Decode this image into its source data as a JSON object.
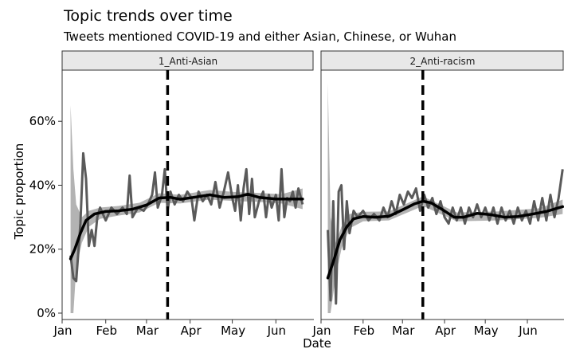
{
  "chart_data": {
    "type": "line",
    "title": "Topic trends over time",
    "subtitle": "Tweets mentioned COVID-19 and either Asian, Chinese, or Wuhan",
    "xlabel": "Date",
    "ylabel": "Topic proportion",
    "x_ticks": [
      "Jan",
      "Feb",
      "Mar",
      "Apr",
      "May",
      "Jun"
    ],
    "y_ticks": [
      "0%",
      "20%",
      "40%",
      "60%"
    ],
    "ylim": [
      -0.02,
      0.76
    ],
    "xlim": [
      "2020-01-01",
      "2020-06-28"
    ],
    "reference_line_date": "2020-03-16",
    "colors": {
      "raw_line": "#5a5a5a",
      "ribbon": "#b3b3b3",
      "smooth_line": "#000000",
      "strip_fill": "#e8e8e8",
      "strip_border": "#333333"
    },
    "panels": [
      {
        "strip": "1_Anti-Asian",
        "raw": [
          {
            "x": "2020-01-07",
            "y": 0.18
          },
          {
            "x": "2020-01-09",
            "y": 0.11
          },
          {
            "x": "2020-01-11",
            "y": 0.1
          },
          {
            "x": "2020-01-14",
            "y": 0.28
          },
          {
            "x": "2020-01-16",
            "y": 0.5
          },
          {
            "x": "2020-01-18",
            "y": 0.42
          },
          {
            "x": "2020-01-20",
            "y": 0.21
          },
          {
            "x": "2020-01-22",
            "y": 0.26
          },
          {
            "x": "2020-01-24",
            "y": 0.21
          },
          {
            "x": "2020-01-26",
            "y": 0.3
          },
          {
            "x": "2020-01-28",
            "y": 0.33
          },
          {
            "x": "2020-02-01",
            "y": 0.29
          },
          {
            "x": "2020-02-05",
            "y": 0.33
          },
          {
            "x": "2020-02-09",
            "y": 0.31
          },
          {
            "x": "2020-02-13",
            "y": 0.33
          },
          {
            "x": "2020-02-16",
            "y": 0.31
          },
          {
            "x": "2020-02-18",
            "y": 0.43
          },
          {
            "x": "2020-02-20",
            "y": 0.3
          },
          {
            "x": "2020-02-24",
            "y": 0.33
          },
          {
            "x": "2020-02-28",
            "y": 0.32
          },
          {
            "x": "2020-03-02",
            "y": 0.34
          },
          {
            "x": "2020-03-05",
            "y": 0.37
          },
          {
            "x": "2020-03-07",
            "y": 0.44
          },
          {
            "x": "2020-03-09",
            "y": 0.33
          },
          {
            "x": "2020-03-12",
            "y": 0.37
          },
          {
            "x": "2020-03-14",
            "y": 0.45
          },
          {
            "x": "2020-03-16",
            "y": 0.32
          },
          {
            "x": "2020-03-18",
            "y": 0.38
          },
          {
            "x": "2020-03-21",
            "y": 0.34
          },
          {
            "x": "2020-03-24",
            "y": 0.37
          },
          {
            "x": "2020-03-27",
            "y": 0.35
          },
          {
            "x": "2020-03-30",
            "y": 0.38
          },
          {
            "x": "2020-04-02",
            "y": 0.36
          },
          {
            "x": "2020-04-04",
            "y": 0.29
          },
          {
            "x": "2020-04-07",
            "y": 0.38
          },
          {
            "x": "2020-04-10",
            "y": 0.35
          },
          {
            "x": "2020-04-13",
            "y": 0.37
          },
          {
            "x": "2020-04-16",
            "y": 0.34
          },
          {
            "x": "2020-04-19",
            "y": 0.41
          },
          {
            "x": "2020-04-22",
            "y": 0.33
          },
          {
            "x": "2020-04-25",
            "y": 0.38
          },
          {
            "x": "2020-04-28",
            "y": 0.44
          },
          {
            "x": "2020-05-01",
            "y": 0.36
          },
          {
            "x": "2020-05-03",
            "y": 0.32
          },
          {
            "x": "2020-05-05",
            "y": 0.4
          },
          {
            "x": "2020-05-07",
            "y": 0.29
          },
          {
            "x": "2020-05-09",
            "y": 0.39
          },
          {
            "x": "2020-05-11",
            "y": 0.45
          },
          {
            "x": "2020-05-13",
            "y": 0.31
          },
          {
            "x": "2020-05-15",
            "y": 0.42
          },
          {
            "x": "2020-05-17",
            "y": 0.3
          },
          {
            "x": "2020-05-20",
            "y": 0.35
          },
          {
            "x": "2020-05-23",
            "y": 0.38
          },
          {
            "x": "2020-05-25",
            "y": 0.3
          },
          {
            "x": "2020-05-27",
            "y": 0.37
          },
          {
            "x": "2020-05-29",
            "y": 0.33
          },
          {
            "x": "2020-06-01",
            "y": 0.37
          },
          {
            "x": "2020-06-03",
            "y": 0.29
          },
          {
            "x": "2020-06-05",
            "y": 0.45
          },
          {
            "x": "2020-06-07",
            "y": 0.3
          },
          {
            "x": "2020-06-09",
            "y": 0.36
          },
          {
            "x": "2020-06-11",
            "y": 0.35
          },
          {
            "x": "2020-06-13",
            "y": 0.38
          },
          {
            "x": "2020-06-15",
            "y": 0.33
          },
          {
            "x": "2020-06-17",
            "y": 0.39
          },
          {
            "x": "2020-06-20",
            "y": 0.34
          }
        ],
        "smooth": [
          {
            "x": "2020-01-07",
            "y": 0.17
          },
          {
            "x": "2020-01-10",
            "y": 0.2
          },
          {
            "x": "2020-01-14",
            "y": 0.25
          },
          {
            "x": "2020-01-18",
            "y": 0.29
          },
          {
            "x": "2020-01-24",
            "y": 0.31
          },
          {
            "x": "2020-02-01",
            "y": 0.318
          },
          {
            "x": "2020-02-10",
            "y": 0.32
          },
          {
            "x": "2020-02-20",
            "y": 0.325
          },
          {
            "x": "2020-03-01",
            "y": 0.338
          },
          {
            "x": "2020-03-10",
            "y": 0.36
          },
          {
            "x": "2020-03-18",
            "y": 0.362
          },
          {
            "x": "2020-03-25",
            "y": 0.356
          },
          {
            "x": "2020-04-05",
            "y": 0.363
          },
          {
            "x": "2020-04-15",
            "y": 0.37
          },
          {
            "x": "2020-04-25",
            "y": 0.362
          },
          {
            "x": "2020-05-05",
            "y": 0.364
          },
          {
            "x": "2020-05-12",
            "y": 0.372
          },
          {
            "x": "2020-05-20",
            "y": 0.362
          },
          {
            "x": "2020-06-01",
            "y": 0.357
          },
          {
            "x": "2020-06-10",
            "y": 0.357
          },
          {
            "x": "2020-06-20",
            "y": 0.357
          }
        ],
        "ribbon": [
          {
            "x": "2020-01-07",
            "lo": 0.0,
            "hi": 0.65
          },
          {
            "x": "2020-01-09",
            "lo": 0.0,
            "hi": 0.45
          },
          {
            "x": "2020-01-11",
            "lo": 0.14,
            "hi": 0.34
          },
          {
            "x": "2020-01-15",
            "lo": 0.22,
            "hi": 0.3
          },
          {
            "x": "2020-01-20",
            "lo": 0.27,
            "hi": 0.32
          },
          {
            "x": "2020-01-28",
            "lo": 0.295,
            "hi": 0.33
          },
          {
            "x": "2020-02-10",
            "lo": 0.305,
            "hi": 0.335
          },
          {
            "x": "2020-02-25",
            "lo": 0.315,
            "hi": 0.345
          },
          {
            "x": "2020-03-10",
            "lo": 0.345,
            "hi": 0.375
          },
          {
            "x": "2020-03-25",
            "lo": 0.343,
            "hi": 0.37
          },
          {
            "x": "2020-04-15",
            "lo": 0.355,
            "hi": 0.385
          },
          {
            "x": "2020-05-05",
            "lo": 0.35,
            "hi": 0.378
          },
          {
            "x": "2020-05-20",
            "lo": 0.348,
            "hi": 0.376
          },
          {
            "x": "2020-06-05",
            "lo": 0.343,
            "hi": 0.372
          },
          {
            "x": "2020-06-20",
            "lo": 0.325,
            "hi": 0.39
          }
        ]
      },
      {
        "strip": "2_Anti-racism",
        "raw": [
          {
            "x": "2020-01-06",
            "y": 0.26
          },
          {
            "x": "2020-01-08",
            "y": 0.04
          },
          {
            "x": "2020-01-10",
            "y": 0.35
          },
          {
            "x": "2020-01-12",
            "y": 0.03
          },
          {
            "x": "2020-01-14",
            "y": 0.38
          },
          {
            "x": "2020-01-16",
            "y": 0.4
          },
          {
            "x": "2020-01-18",
            "y": 0.2
          },
          {
            "x": "2020-01-20",
            "y": 0.35
          },
          {
            "x": "2020-01-22",
            "y": 0.25
          },
          {
            "x": "2020-01-25",
            "y": 0.32
          },
          {
            "x": "2020-01-28",
            "y": 0.3
          },
          {
            "x": "2020-02-01",
            "y": 0.32
          },
          {
            "x": "2020-02-05",
            "y": 0.29
          },
          {
            "x": "2020-02-09",
            "y": 0.31
          },
          {
            "x": "2020-02-13",
            "y": 0.29
          },
          {
            "x": "2020-02-16",
            "y": 0.33
          },
          {
            "x": "2020-02-19",
            "y": 0.3
          },
          {
            "x": "2020-02-22",
            "y": 0.35
          },
          {
            "x": "2020-02-25",
            "y": 0.31
          },
          {
            "x": "2020-02-28",
            "y": 0.37
          },
          {
            "x": "2020-03-02",
            "y": 0.34
          },
          {
            "x": "2020-03-05",
            "y": 0.38
          },
          {
            "x": "2020-03-08",
            "y": 0.36
          },
          {
            "x": "2020-03-11",
            "y": 0.39
          },
          {
            "x": "2020-03-14",
            "y": 0.32
          },
          {
            "x": "2020-03-17",
            "y": 0.37
          },
          {
            "x": "2020-03-20",
            "y": 0.33
          },
          {
            "x": "2020-03-23",
            "y": 0.36
          },
          {
            "x": "2020-03-26",
            "y": 0.31
          },
          {
            "x": "2020-03-29",
            "y": 0.35
          },
          {
            "x": "2020-04-01",
            "y": 0.3
          },
          {
            "x": "2020-04-04",
            "y": 0.28
          },
          {
            "x": "2020-04-07",
            "y": 0.33
          },
          {
            "x": "2020-04-10",
            "y": 0.29
          },
          {
            "x": "2020-04-13",
            "y": 0.33
          },
          {
            "x": "2020-04-16",
            "y": 0.28
          },
          {
            "x": "2020-04-19",
            "y": 0.33
          },
          {
            "x": "2020-04-22",
            "y": 0.3
          },
          {
            "x": "2020-04-25",
            "y": 0.34
          },
          {
            "x": "2020-04-28",
            "y": 0.3
          },
          {
            "x": "2020-05-01",
            "y": 0.33
          },
          {
            "x": "2020-05-04",
            "y": 0.29
          },
          {
            "x": "2020-05-07",
            "y": 0.33
          },
          {
            "x": "2020-05-10",
            "y": 0.28
          },
          {
            "x": "2020-05-13",
            "y": 0.33
          },
          {
            "x": "2020-05-16",
            "y": 0.29
          },
          {
            "x": "2020-05-19",
            "y": 0.32
          },
          {
            "x": "2020-05-22",
            "y": 0.28
          },
          {
            "x": "2020-05-25",
            "y": 0.33
          },
          {
            "x": "2020-05-28",
            "y": 0.29
          },
          {
            "x": "2020-05-31",
            "y": 0.32
          },
          {
            "x": "2020-06-03",
            "y": 0.28
          },
          {
            "x": "2020-06-06",
            "y": 0.35
          },
          {
            "x": "2020-06-09",
            "y": 0.29
          },
          {
            "x": "2020-06-12",
            "y": 0.36
          },
          {
            "x": "2020-06-15",
            "y": 0.29
          },
          {
            "x": "2020-06-18",
            "y": 0.37
          },
          {
            "x": "2020-06-21",
            "y": 0.3
          },
          {
            "x": "2020-06-24",
            "y": 0.36
          },
          {
            "x": "2020-06-27",
            "y": 0.45
          }
        ],
        "smooth": [
          {
            "x": "2020-01-06",
            "y": 0.11
          },
          {
            "x": "2020-01-10",
            "y": 0.16
          },
          {
            "x": "2020-01-15",
            "y": 0.23
          },
          {
            "x": "2020-01-20",
            "y": 0.27
          },
          {
            "x": "2020-01-25",
            "y": 0.295
          },
          {
            "x": "2020-02-01",
            "y": 0.302
          },
          {
            "x": "2020-02-10",
            "y": 0.3
          },
          {
            "x": "2020-02-20",
            "y": 0.303
          },
          {
            "x": "2020-03-01",
            "y": 0.323
          },
          {
            "x": "2020-03-10",
            "y": 0.342
          },
          {
            "x": "2020-03-16",
            "y": 0.35
          },
          {
            "x": "2020-03-22",
            "y": 0.345
          },
          {
            "x": "2020-03-30",
            "y": 0.325
          },
          {
            "x": "2020-04-08",
            "y": 0.3
          },
          {
            "x": "2020-04-15",
            "y": 0.3
          },
          {
            "x": "2020-04-25",
            "y": 0.312
          },
          {
            "x": "2020-05-05",
            "y": 0.308
          },
          {
            "x": "2020-05-15",
            "y": 0.3
          },
          {
            "x": "2020-05-25",
            "y": 0.302
          },
          {
            "x": "2020-06-05",
            "y": 0.31
          },
          {
            "x": "2020-06-15",
            "y": 0.318
          },
          {
            "x": "2020-06-27",
            "y": 0.333
          }
        ],
        "ribbon": [
          {
            "x": "2020-01-06",
            "lo": 0.0,
            "hi": 0.72
          },
          {
            "x": "2020-01-08",
            "lo": 0.0,
            "hi": 0.3
          },
          {
            "x": "2020-01-12",
            "lo": 0.12,
            "hi": 0.22
          },
          {
            "x": "2020-01-16",
            "lo": 0.2,
            "hi": 0.27
          },
          {
            "x": "2020-01-22",
            "lo": 0.265,
            "hi": 0.31
          },
          {
            "x": "2020-02-01",
            "lo": 0.287,
            "hi": 0.317
          },
          {
            "x": "2020-02-20",
            "lo": 0.29,
            "hi": 0.318
          },
          {
            "x": "2020-03-16",
            "lo": 0.335,
            "hi": 0.365
          },
          {
            "x": "2020-04-10",
            "lo": 0.287,
            "hi": 0.315
          },
          {
            "x": "2020-05-10",
            "lo": 0.29,
            "hi": 0.318
          },
          {
            "x": "2020-06-10",
            "lo": 0.298,
            "hi": 0.328
          },
          {
            "x": "2020-06-27",
            "lo": 0.31,
            "hi": 0.355
          }
        ]
      }
    ]
  }
}
